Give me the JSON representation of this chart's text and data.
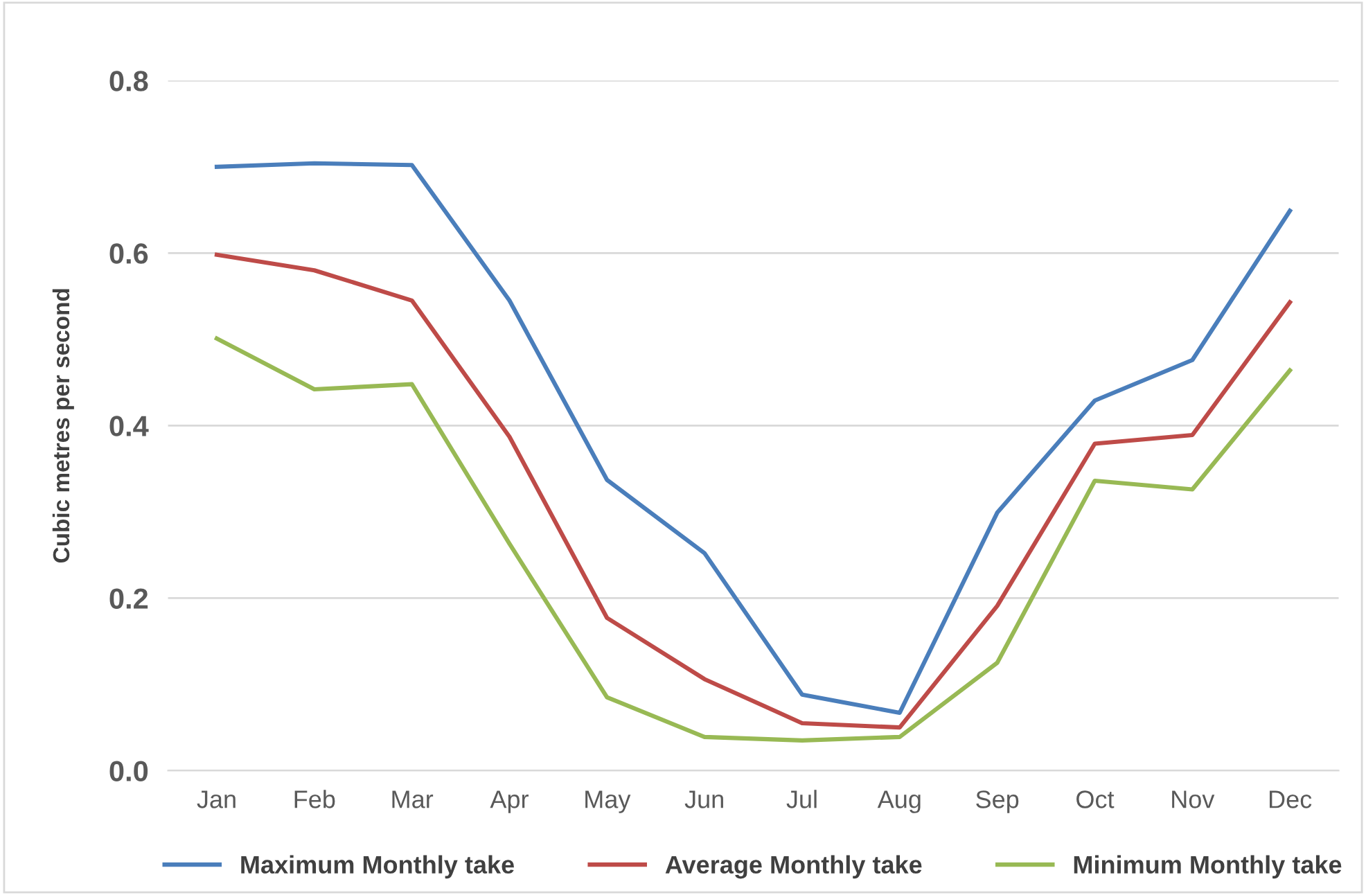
{
  "chart_data": {
    "type": "line",
    "ylabel": "Cubic metres per second",
    "categories": [
      "Jan",
      "Feb",
      "Mar",
      "Apr",
      "May",
      "Jun",
      "Jul",
      "Aug",
      "Sep",
      "Oct",
      "Nov",
      "Dec"
    ],
    "series": [
      {
        "name": "Maximum Monthly take",
        "color": "#4a7ebb",
        "values": [
          0.7,
          0.704,
          0.702,
          0.545,
          0.337,
          0.252,
          0.088,
          0.067,
          0.299,
          0.429,
          0.476,
          0.649
        ]
      },
      {
        "name": "Average Monthly take",
        "color": "#be4b48",
        "values": [
          0.598,
          0.58,
          0.545,
          0.387,
          0.177,
          0.106,
          0.055,
          0.05,
          0.191,
          0.379,
          0.389,
          0.543
        ]
      },
      {
        "name": "Minimum Monthly take",
        "color": "#98b954",
        "values": [
          0.501,
          0.442,
          0.448,
          0.263,
          0.085,
          0.039,
          0.035,
          0.039,
          0.125,
          0.336,
          0.326,
          0.464
        ]
      }
    ],
    "ylim": [
      0,
      0.8
    ],
    "yticks": [
      {
        "value": 0,
        "label": "0.0"
      },
      {
        "value": 0.2,
        "label": "0.2"
      },
      {
        "value": 0.4,
        "label": "0.4"
      },
      {
        "value": 0.6,
        "label": "0.6"
      },
      {
        "value": 0.8,
        "label": "0.8"
      }
    ],
    "grid": "y",
    "legend": "bottom",
    "marker": "none",
    "line_style": "solid"
  }
}
